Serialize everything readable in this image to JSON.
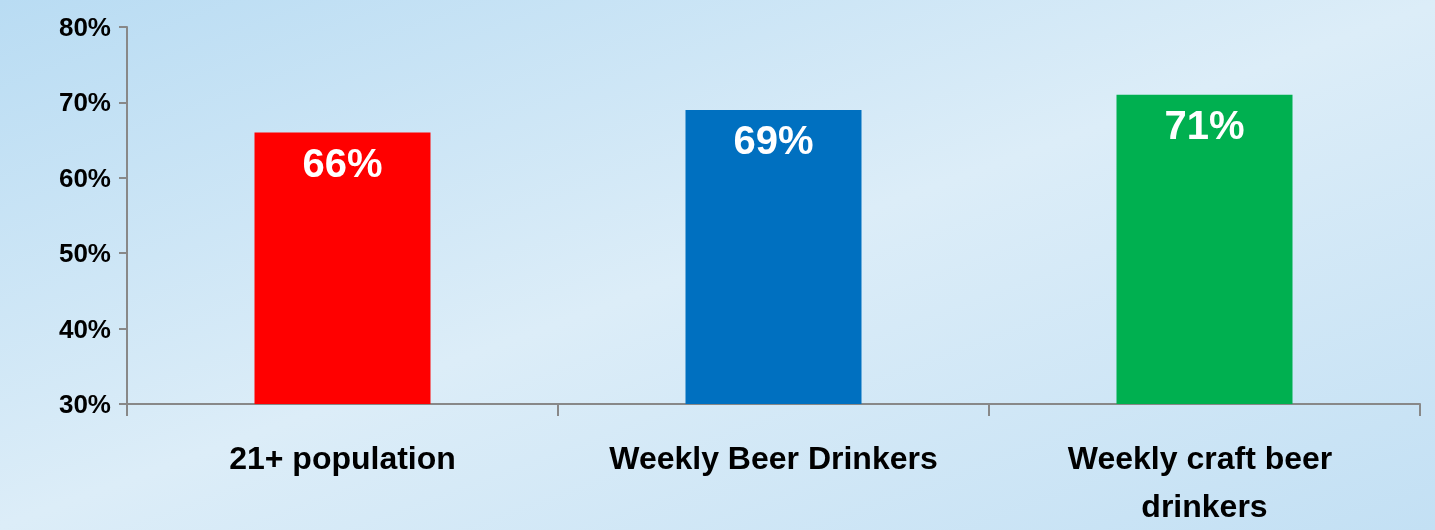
{
  "chart_data": {
    "type": "bar",
    "categories": [
      "21+ population",
      "Weekly Beer Drinkers",
      "Weekly craft beer drinkers"
    ],
    "values": [
      66,
      69,
      71
    ],
    "colors": [
      "#ff0000",
      "#0070c0",
      "#00b050"
    ],
    "value_labels": [
      "66%",
      "69%",
      "71%"
    ],
    "ylim": [
      30,
      80
    ],
    "yticks": [
      {
        "value": 30,
        "label": "30%"
      },
      {
        "value": 40,
        "label": "40%"
      },
      {
        "value": 50,
        "label": "50%"
      },
      {
        "value": 60,
        "label": "60%"
      },
      {
        "value": 70,
        "label": "70%"
      },
      {
        "value": 80,
        "label": "80%"
      }
    ],
    "grid": false
  }
}
